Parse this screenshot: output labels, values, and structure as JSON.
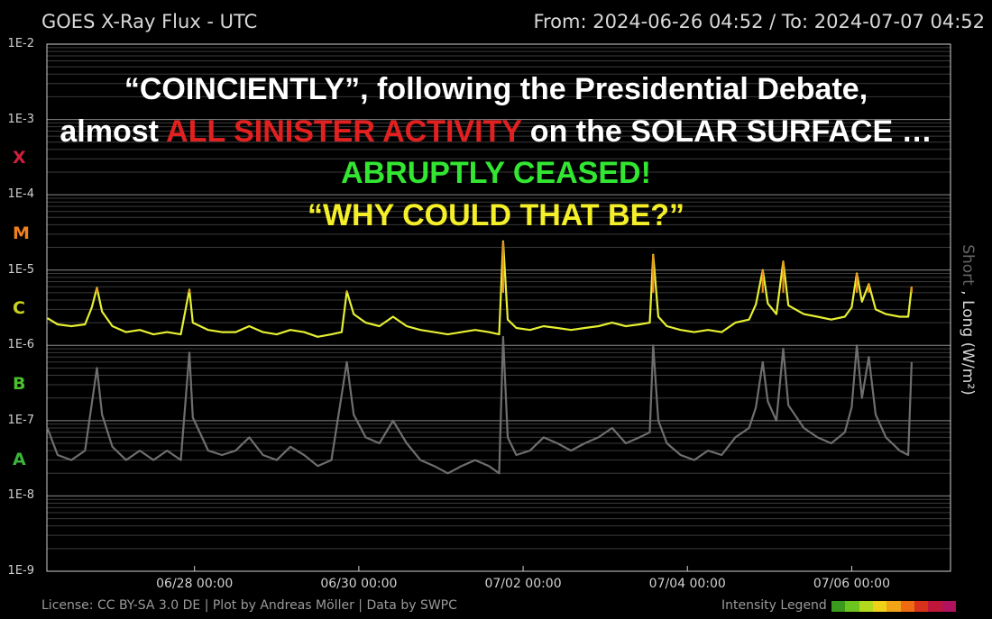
{
  "header": {
    "title": "GOES X-Ray Flux - UTC",
    "range": "From: 2024-06-26 04:52  /  To: 2024-07-07 04:52"
  },
  "overlay": {
    "line1": "“COINCIENTLY”, following the Presidential Debate,",
    "line2_pre": "almost ",
    "line2_red": "ALL SINISTER ACTIVITY",
    "line2_post": " on the SOLAR SURFACE …",
    "line3": "ABRUPTLY CEASED!",
    "line4": "“WHY COULD THAT BE?”",
    "colors": {
      "white": "#ffffff",
      "red": "#e32020",
      "green": "#32e632",
      "yellow": "#f5ef2a"
    }
  },
  "footer": {
    "license": "License: CC BY-SA 3.0 DE | Plot by Andreas Möller | Data by SWPC",
    "legend_label": "Intensity Legend",
    "legend_colors": [
      "#3a9a1e",
      "#6cc41e",
      "#b3d91c",
      "#eed21a",
      "#f0a416",
      "#ee6b14",
      "#d8321c",
      "#c0163a",
      "#b0125e"
    ]
  },
  "axis_right": {
    "short": "Short",
    "sep": " , ",
    "long": "Long (W/m²)"
  },
  "chart_data": {
    "type": "line",
    "y_scale": "log",
    "yticks": [
      "1E-9",
      "1E-8",
      "1E-7",
      "1E-6",
      "1E-5",
      "1E-4",
      "1E-3",
      "1E-2"
    ],
    "ylim": [
      1e-09,
      0.01
    ],
    "flare_classes": [
      {
        "label": "X",
        "color": "#d0203c",
        "flux": 0.0003
      },
      {
        "label": "M",
        "color": "#f0801e",
        "flux": 3e-05
      },
      {
        "label": "C",
        "color": "#c8d21e",
        "flux": 3e-06
      },
      {
        "label": "B",
        "color": "#4cbf2e",
        "flux": 3e-07
      },
      {
        "label": "A",
        "color": "#3ab53a",
        "flux": 3e-08
      }
    ],
    "x_range": [
      "2024-06-26 04:52",
      "2024-07-07 04:52"
    ],
    "xticks": [
      {
        "date": "2024-06-28 00:00",
        "label": "06/28 00:00"
      },
      {
        "date": "2024-06-30 00:00",
        "label": "06/30 00:00"
      },
      {
        "date": "2024-07-02 00:00",
        "label": "07/02 00:00"
      },
      {
        "date": "2024-07-04 00:00",
        "label": "07/04 00:00"
      },
      {
        "date": "2024-07-06 00:00",
        "label": "07/06 00:00"
      }
    ],
    "grid": true,
    "series": [
      {
        "kind": "long",
        "color": "#e6f032",
        "peak_color": "#f08c1e",
        "points": [
          [
            "2024-06-26 05:00",
            2.3e-06
          ],
          [
            "2024-06-26 08:00",
            1.9e-06
          ],
          [
            "2024-06-26 12:00",
            1.8e-06
          ],
          [
            "2024-06-26 16:00",
            1.9e-06
          ],
          [
            "2024-06-26 18:00",
            3.2e-06
          ],
          [
            "2024-06-26 19:30",
            5.8e-06
          ],
          [
            "2024-06-26 21:00",
            2.8e-06
          ],
          [
            "2024-06-27 00:00",
            1.8e-06
          ],
          [
            "2024-06-27 04:00",
            1.5e-06
          ],
          [
            "2024-06-27 08:00",
            1.6e-06
          ],
          [
            "2024-06-27 12:00",
            1.4e-06
          ],
          [
            "2024-06-27 16:00",
            1.5e-06
          ],
          [
            "2024-06-27 20:00",
            1.4e-06
          ],
          [
            "2024-06-27 22:30",
            5.5e-06
          ],
          [
            "2024-06-27 23:30",
            2e-06
          ],
          [
            "2024-06-28 04:00",
            1.6e-06
          ],
          [
            "2024-06-28 08:00",
            1.5e-06
          ],
          [
            "2024-06-28 12:00",
            1.5e-06
          ],
          [
            "2024-06-28 16:00",
            1.8e-06
          ],
          [
            "2024-06-28 20:00",
            1.5e-06
          ],
          [
            "2024-06-29 00:00",
            1.4e-06
          ],
          [
            "2024-06-29 04:00",
            1.6e-06
          ],
          [
            "2024-06-29 08:00",
            1.5e-06
          ],
          [
            "2024-06-29 12:00",
            1.3e-06
          ],
          [
            "2024-06-29 16:00",
            1.4e-06
          ],
          [
            "2024-06-29 19:00",
            1.5e-06
          ],
          [
            "2024-06-29 20:30",
            5.2e-06
          ],
          [
            "2024-06-29 22:30",
            2.6e-06
          ],
          [
            "2024-06-30 02:00",
            2e-06
          ],
          [
            "2024-06-30 06:00",
            1.8e-06
          ],
          [
            "2024-06-30 10:00",
            2.4e-06
          ],
          [
            "2024-06-30 14:00",
            1.8e-06
          ],
          [
            "2024-06-30 18:00",
            1.6e-06
          ],
          [
            "2024-06-30 22:00",
            1.5e-06
          ],
          [
            "2024-07-01 02:00",
            1.4e-06
          ],
          [
            "2024-07-01 06:00",
            1.5e-06
          ],
          [
            "2024-07-01 10:00",
            1.6e-06
          ],
          [
            "2024-07-01 14:00",
            1.5e-06
          ],
          [
            "2024-07-01 17:00",
            1.4e-06
          ],
          [
            "2024-07-01 18:10",
            2.4e-05
          ],
          [
            "2024-07-01 19:30",
            2.2e-06
          ],
          [
            "2024-07-01 22:00",
            1.7e-06
          ],
          [
            "2024-07-02 02:00",
            1.6e-06
          ],
          [
            "2024-07-02 06:00",
            1.8e-06
          ],
          [
            "2024-07-02 10:00",
            1.7e-06
          ],
          [
            "2024-07-02 14:00",
            1.6e-06
          ],
          [
            "2024-07-02 18:00",
            1.7e-06
          ],
          [
            "2024-07-02 22:00",
            1.8e-06
          ],
          [
            "2024-07-03 02:00",
            2e-06
          ],
          [
            "2024-07-03 06:00",
            1.8e-06
          ],
          [
            "2024-07-03 10:00",
            1.9e-06
          ],
          [
            "2024-07-03 13:00",
            2e-06
          ],
          [
            "2024-07-03 14:00",
            1.6e-05
          ],
          [
            "2024-07-03 15:30",
            2.4e-06
          ],
          [
            "2024-07-03 18:00",
            1.8e-06
          ],
          [
            "2024-07-03 22:00",
            1.6e-06
          ],
          [
            "2024-07-04 02:00",
            1.5e-06
          ],
          [
            "2024-07-04 06:00",
            1.6e-06
          ],
          [
            "2024-07-04 10:00",
            1.5e-06
          ],
          [
            "2024-07-04 14:00",
            2e-06
          ],
          [
            "2024-07-04 18:00",
            2.2e-06
          ],
          [
            "2024-07-04 20:00",
            3.5e-06
          ],
          [
            "2024-07-04 22:00",
            1e-05
          ],
          [
            "2024-07-04 23:30",
            3.6e-06
          ],
          [
            "2024-07-05 02:00",
            2.6e-06
          ],
          [
            "2024-07-05 04:00",
            1.3e-05
          ],
          [
            "2024-07-05 05:30",
            3.4e-06
          ],
          [
            "2024-07-05 10:00",
            2.6e-06
          ],
          [
            "2024-07-05 14:00",
            2.4e-06
          ],
          [
            "2024-07-05 18:00",
            2.2e-06
          ],
          [
            "2024-07-05 22:00",
            2.4e-06
          ],
          [
            "2024-07-06 00:00",
            3.2e-06
          ],
          [
            "2024-07-06 01:30",
            9e-06
          ],
          [
            "2024-07-06 03:00",
            3.8e-06
          ],
          [
            "2024-07-06 05:00",
            6.5e-06
          ],
          [
            "2024-07-06 07:00",
            3e-06
          ],
          [
            "2024-07-06 10:00",
            2.6e-06
          ],
          [
            "2024-07-06 14:00",
            2.4e-06
          ],
          [
            "2024-07-06 16:30",
            2.4e-06
          ],
          [
            "2024-07-06 17:30",
            6e-06
          ]
        ]
      },
      {
        "kind": "short",
        "color": "#6e6e6e",
        "points": [
          [
            "2024-06-26 05:00",
            8e-08
          ],
          [
            "2024-06-26 08:00",
            3.5e-08
          ],
          [
            "2024-06-26 12:00",
            3e-08
          ],
          [
            "2024-06-26 16:00",
            4e-08
          ],
          [
            "2024-06-26 19:30",
            5e-07
          ],
          [
            "2024-06-26 21:00",
            1.2e-07
          ],
          [
            "2024-06-27 00:00",
            4.5e-08
          ],
          [
            "2024-06-27 04:00",
            3e-08
          ],
          [
            "2024-06-27 08:00",
            4e-08
          ],
          [
            "2024-06-27 12:00",
            3e-08
          ],
          [
            "2024-06-27 16:00",
            4e-08
          ],
          [
            "2024-06-27 20:00",
            3e-08
          ],
          [
            "2024-06-27 22:30",
            8e-07
          ],
          [
            "2024-06-27 23:30",
            1.1e-07
          ],
          [
            "2024-06-28 04:00",
            4e-08
          ],
          [
            "2024-06-28 08:00",
            3.5e-08
          ],
          [
            "2024-06-28 12:00",
            4e-08
          ],
          [
            "2024-06-28 16:00",
            6e-08
          ],
          [
            "2024-06-28 20:00",
            3.5e-08
          ],
          [
            "2024-06-29 00:00",
            3e-08
          ],
          [
            "2024-06-29 04:00",
            4.5e-08
          ],
          [
            "2024-06-29 08:00",
            3.5e-08
          ],
          [
            "2024-06-29 12:00",
            2.5e-08
          ],
          [
            "2024-06-29 16:00",
            3e-08
          ],
          [
            "2024-06-29 20:30",
            6e-07
          ],
          [
            "2024-06-29 22:30",
            1.2e-07
          ],
          [
            "2024-06-30 02:00",
            6e-08
          ],
          [
            "2024-06-30 06:00",
            5e-08
          ],
          [
            "2024-06-30 10:00",
            1e-07
          ],
          [
            "2024-06-30 14:00",
            5e-08
          ],
          [
            "2024-06-30 18:00",
            3e-08
          ],
          [
            "2024-06-30 22:00",
            2.5e-08
          ],
          [
            "2024-07-01 02:00",
            2e-08
          ],
          [
            "2024-07-01 06:00",
            2.5e-08
          ],
          [
            "2024-07-01 10:00",
            3e-08
          ],
          [
            "2024-07-01 14:00",
            2.5e-08
          ],
          [
            "2024-07-01 17:00",
            2e-08
          ],
          [
            "2024-07-01 18:10",
            1.3e-06
          ],
          [
            "2024-07-01 19:30",
            6e-08
          ],
          [
            "2024-07-01 22:00",
            3.5e-08
          ],
          [
            "2024-07-02 02:00",
            4e-08
          ],
          [
            "2024-07-02 06:00",
            6e-08
          ],
          [
            "2024-07-02 10:00",
            5e-08
          ],
          [
            "2024-07-02 14:00",
            4e-08
          ],
          [
            "2024-07-02 18:00",
            5e-08
          ],
          [
            "2024-07-02 22:00",
            6e-08
          ],
          [
            "2024-07-03 02:00",
            8e-08
          ],
          [
            "2024-07-03 06:00",
            5e-08
          ],
          [
            "2024-07-03 10:00",
            6e-08
          ],
          [
            "2024-07-03 13:00",
            7e-08
          ],
          [
            "2024-07-03 14:00",
            1e-06
          ],
          [
            "2024-07-03 15:30",
            1e-07
          ],
          [
            "2024-07-03 18:00",
            5e-08
          ],
          [
            "2024-07-03 22:00",
            3.5e-08
          ],
          [
            "2024-07-04 02:00",
            3e-08
          ],
          [
            "2024-07-04 06:00",
            4e-08
          ],
          [
            "2024-07-04 10:00",
            3.5e-08
          ],
          [
            "2024-07-04 14:00",
            6e-08
          ],
          [
            "2024-07-04 18:00",
            8e-08
          ],
          [
            "2024-07-04 20:00",
            1.5e-07
          ],
          [
            "2024-07-04 22:00",
            6e-07
          ],
          [
            "2024-07-04 23:30",
            1.8e-07
          ],
          [
            "2024-07-05 02:00",
            1e-07
          ],
          [
            "2024-07-05 04:00",
            9e-07
          ],
          [
            "2024-07-05 05:30",
            1.6e-07
          ],
          [
            "2024-07-05 10:00",
            8e-08
          ],
          [
            "2024-07-05 14:00",
            6e-08
          ],
          [
            "2024-07-05 18:00",
            5e-08
          ],
          [
            "2024-07-05 22:00",
            7e-08
          ],
          [
            "2024-07-06 00:00",
            1.5e-07
          ],
          [
            "2024-07-06 01:30",
            1e-06
          ],
          [
            "2024-07-06 03:00",
            2e-07
          ],
          [
            "2024-07-06 05:00",
            7e-07
          ],
          [
            "2024-07-06 07:00",
            1.2e-07
          ],
          [
            "2024-07-06 10:00",
            6e-08
          ],
          [
            "2024-07-06 14:00",
            4e-08
          ],
          [
            "2024-07-06 16:30",
            3.5e-08
          ],
          [
            "2024-07-06 17:30",
            6e-07
          ]
        ]
      }
    ]
  }
}
